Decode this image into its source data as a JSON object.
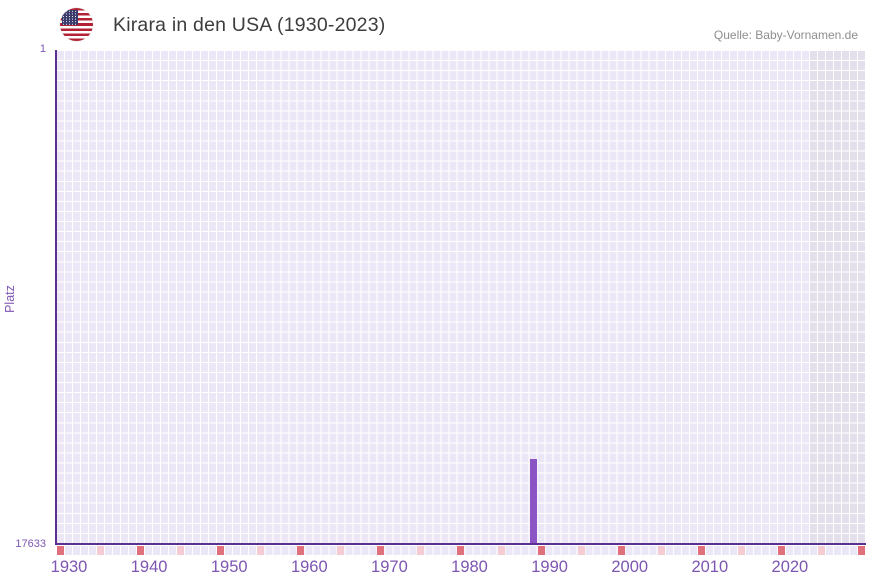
{
  "header": {
    "title": "Kirara in den USA (1930-2023)",
    "source": "Quelle: Baby-Vornamen.de"
  },
  "chart_data": {
    "type": "bar",
    "title": "Kirara in den USA (1930-2023)",
    "xlabel": "",
    "ylabel": "Platz",
    "y_axis": {
      "min": 1,
      "max": 17633,
      "min_label": "1",
      "max_label": "17633",
      "inverted": true,
      "note": "rank 1 at top, rank 17633 at baseline; bars rise from baseline toward their rank"
    },
    "x_axis": {
      "first_year": 1929,
      "last_year": 2029,
      "tick_years": [
        1930,
        1940,
        1950,
        1960,
        1970,
        1980,
        1990,
        2000,
        2010,
        2020
      ]
    },
    "series": [
      {
        "name": "Platz",
        "points": [
          {
            "year": 1988,
            "rank": 14600
          }
        ]
      }
    ],
    "markers": {
      "decade_years": [
        1929,
        1939,
        1949,
        1959,
        1969,
        1979,
        1989,
        1999,
        2009,
        2019,
        2029
      ],
      "mid_decade_years": [
        1934,
        1944,
        1954,
        1964,
        1974,
        1984,
        1994,
        2004,
        2014,
        2024
      ]
    },
    "future_region": {
      "from_year": 2023,
      "to_year": 2029
    },
    "grid": true,
    "legend": false,
    "colors": {
      "bar": "#8b54c4",
      "axis": "#5a3191",
      "tick_label": "#7d55b2",
      "grid_cell": "#ece7f6",
      "grid_cell_future": "#e3e0ec",
      "marker_decade": "#e0717c",
      "marker_mid_decade": "#f5ccd4",
      "title_text": "#3d3d3d",
      "source_text": "#8e8e8e",
      "flag_red": "#b22234",
      "flag_blue": "#3c3b6e"
    }
  }
}
